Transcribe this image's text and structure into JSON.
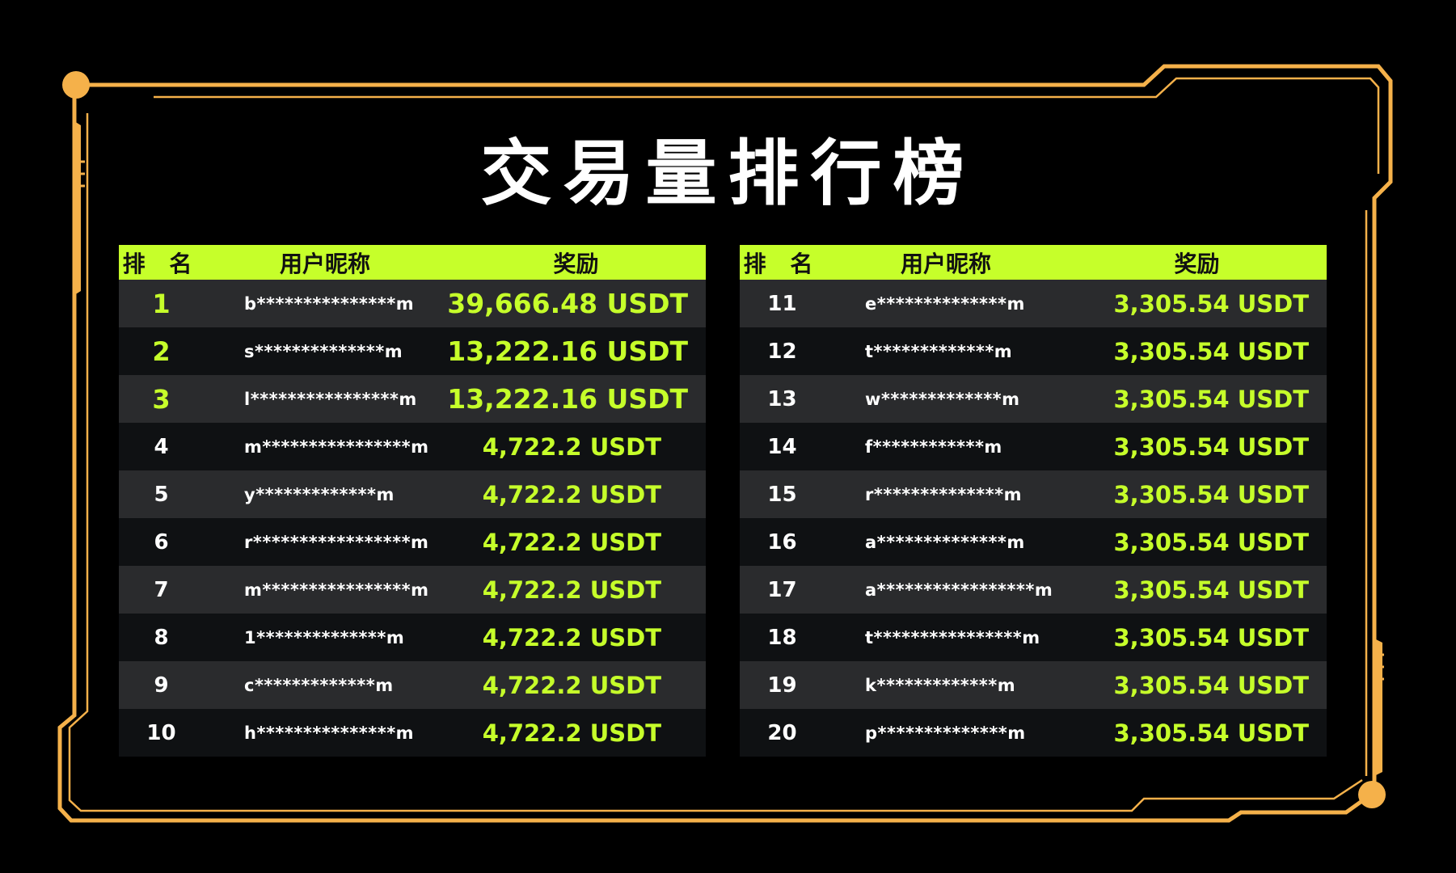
{
  "title": "交易量排行榜",
  "colors": {
    "accent": "#c6ff2a",
    "frame": "#f5b14a",
    "background": "#000000"
  },
  "headers": {
    "rank": "排 名",
    "nickname": "用户昵称",
    "prize": "奖励"
  },
  "left_rows": [
    {
      "rank": "1",
      "nickname": "b***************m",
      "prize": "39,666.48 USDT"
    },
    {
      "rank": "2",
      "nickname": "s**************m",
      "prize": "13,222.16 USDT"
    },
    {
      "rank": "3",
      "nickname": "l****************m",
      "prize": "13,222.16 USDT"
    },
    {
      "rank": "4",
      "nickname": "m****************m",
      "prize": "4,722.2 USDT"
    },
    {
      "rank": "5",
      "nickname": "y*************m",
      "prize": "4,722.2 USDT"
    },
    {
      "rank": "6",
      "nickname": "r*****************m",
      "prize": "4,722.2 USDT"
    },
    {
      "rank": "7",
      "nickname": "m****************m",
      "prize": "4,722.2 USDT"
    },
    {
      "rank": "8",
      "nickname": "1**************m",
      "prize": "4,722.2 USDT"
    },
    {
      "rank": "9",
      "nickname": "c*************m",
      "prize": "4,722.2 USDT"
    },
    {
      "rank": "10",
      "nickname": "h***************m",
      "prize": "4,722.2 USDT"
    }
  ],
  "right_rows": [
    {
      "rank": "11",
      "nickname": "e**************m",
      "prize": "3,305.54 USDT"
    },
    {
      "rank": "12",
      "nickname": "t*************m",
      "prize": "3,305.54 USDT"
    },
    {
      "rank": "13",
      "nickname": "w*************m",
      "prize": "3,305.54 USDT"
    },
    {
      "rank": "14",
      "nickname": "f************m",
      "prize": "3,305.54 USDT"
    },
    {
      "rank": "15",
      "nickname": "r**************m",
      "prize": "3,305.54 USDT"
    },
    {
      "rank": "16",
      "nickname": "a**************m",
      "prize": "3,305.54 USDT"
    },
    {
      "rank": "17",
      "nickname": "a*****************m",
      "prize": "3,305.54 USDT"
    },
    {
      "rank": "18",
      "nickname": "t****************m",
      "prize": "3,305.54 USDT"
    },
    {
      "rank": "19",
      "nickname": "k*************m",
      "prize": "3,305.54 USDT"
    },
    {
      "rank": "20",
      "nickname": "p**************m",
      "prize": "3,305.54 USDT"
    }
  ]
}
